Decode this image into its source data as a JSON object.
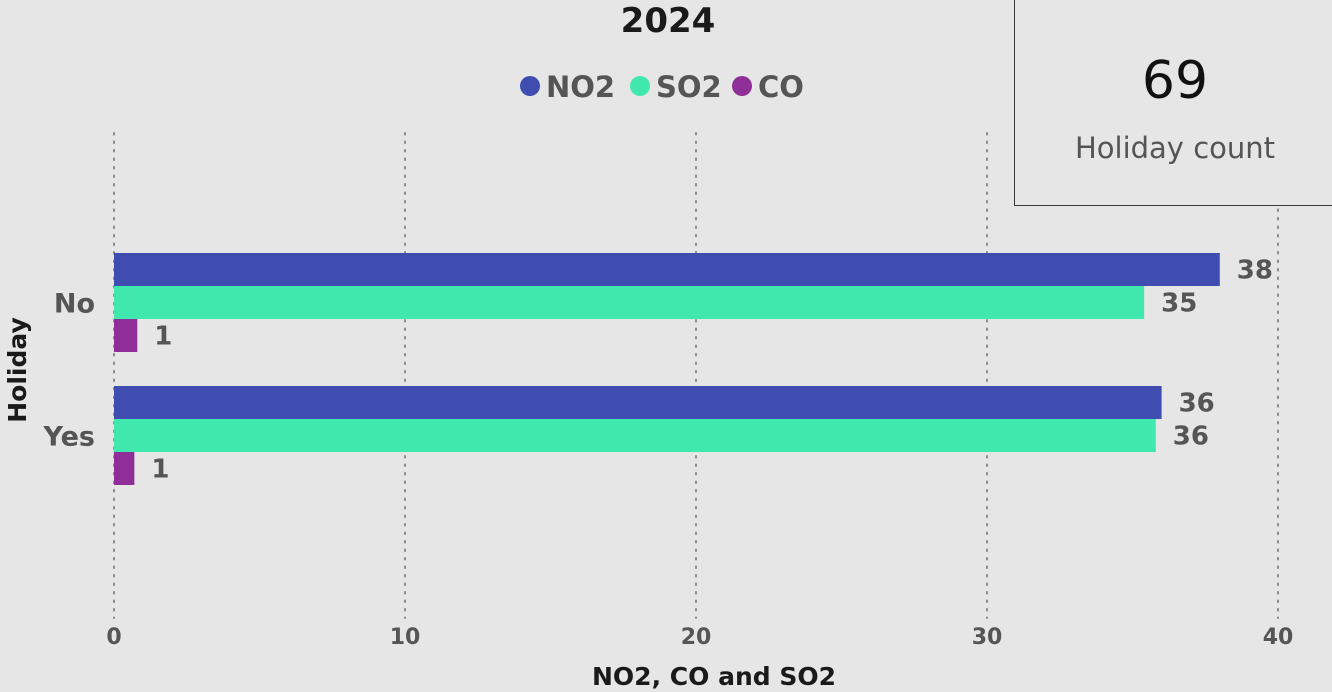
{
  "chart_data": {
    "type": "bar",
    "orientation": "horizontal",
    "title": "2024",
    "categories": [
      "No",
      "Yes"
    ],
    "series": [
      {
        "name": "NO2",
        "values": [
          38,
          36
        ],
        "labels": [
          "38",
          "36"
        ],
        "color": "#3f4db0"
      },
      {
        "name": "SO2",
        "values": [
          35.4,
          35.8
        ],
        "labels": [
          "35",
          "36"
        ],
        "color": "#41e8ad"
      },
      {
        "name": "CO",
        "values": [
          0.8,
          0.7
        ],
        "labels": [
          "1",
          "1"
        ],
        "color": "#8f2e96"
      }
    ],
    "xlabel": "NO2, CO and SO2",
    "ylabel": "Holiday",
    "xlim": [
      0,
      40
    ],
    "xticks": [
      "0",
      "10",
      "20",
      "30",
      "40"
    ],
    "grid": "vertical dotted",
    "legend_position": "top"
  },
  "card": {
    "value": "69",
    "label": "Holiday count"
  }
}
